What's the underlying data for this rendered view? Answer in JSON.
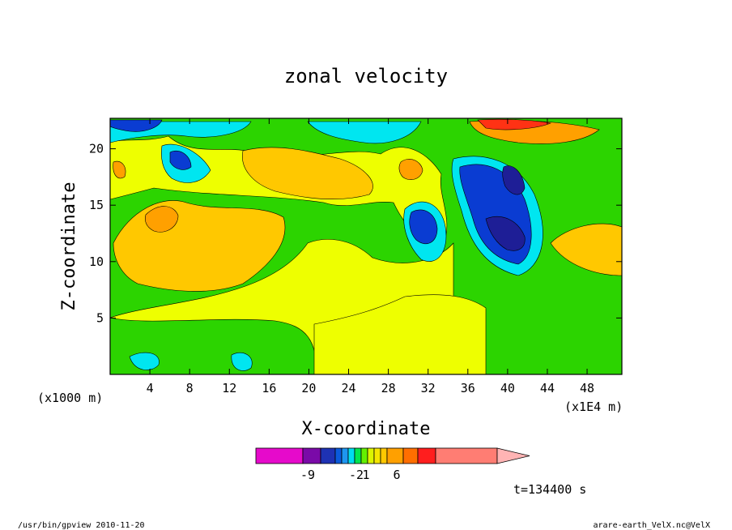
{
  "chart_data": {
    "type": "heatmap",
    "title": "zonal velocity",
    "xlabel": "X-coordinate",
    "ylabel": "Z-coordinate",
    "x_unit_label": "(x1000 m)",
    "x_multiplier_label": "(x1E4 m)",
    "x_ticks": [
      "4",
      "8",
      "12",
      "16",
      "20",
      "24",
      "28",
      "32",
      "36",
      "40",
      "44",
      "48"
    ],
    "y_ticks": [
      "5",
      "10",
      "15",
      "20"
    ],
    "xlim": [
      0,
      51.5
    ],
    "ylim": [
      0,
      22.7
    ],
    "time_label": "t=134400 s",
    "colorbar": {
      "tick_labels": [
        "-9",
        "-2",
        "1",
        "6"
      ],
      "colors": [
        "#e60acb",
        "#7a0aa8",
        "#1e32b4",
        "#0a5adc",
        "#1e96f0",
        "#00dcf0",
        "#00e650",
        "#64f000",
        "#dcf500",
        "#f5e600",
        "#ffc800",
        "#ffa000",
        "#ff6e00",
        "#ff1e1e",
        "#ff7d73",
        "#ffb4b4"
      ]
    },
    "fill_colors": {
      "background": "#2cd400",
      "yellow": "#eeff00",
      "gold": "#ffc800",
      "orange": "#ffa000",
      "cyan": "#00e6f0",
      "blue": "#0a3cd2",
      "darkblue": "#1e1e96",
      "red": "#ff3214"
    }
  },
  "footer": {
    "left": "/usr/bin/gpview  2010-11-20",
    "right": "arare-earth_VelX.nc@VelX"
  }
}
